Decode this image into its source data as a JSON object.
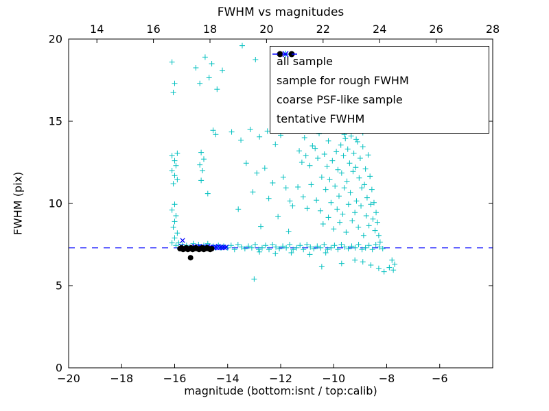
{
  "figure": {
    "background": "#ffffff",
    "frame_color": "#000000"
  },
  "chart_data": {
    "type": "scatter",
    "title": "FWHM vs magnitudes",
    "xlabel": "magnitude (bottom:isnt / top:calib)",
    "ylabel": "FWHM (pix)",
    "xlim": [
      -20,
      -4
    ],
    "top_xlim": [
      13,
      28
    ],
    "ylim": [
      0,
      20
    ],
    "x_ticks_bottom": [
      -20,
      -18,
      -16,
      -14,
      -12,
      -10,
      -8,
      -6
    ],
    "x_ticks_top": [
      14,
      16,
      18,
      20,
      22,
      24,
      26,
      28
    ],
    "y_ticks": [
      0,
      5,
      10,
      15,
      20
    ],
    "grid": false,
    "legend_position": "upper right",
    "tentative_fwhm": 7.3,
    "series": [
      {
        "name": "all sample",
        "marker": "plus",
        "color": "#00bfbf",
        "points": [
          [
            -16.1,
            18.6
          ],
          [
            -16.0,
            17.3
          ],
          [
            -16.05,
            16.75
          ],
          [
            -15.9,
            13.05
          ],
          [
            -16.1,
            12.9
          ],
          [
            -16.0,
            12.6
          ],
          [
            -15.95,
            12.3
          ],
          [
            -16.1,
            12.0
          ],
          [
            -16.0,
            11.7
          ],
          [
            -15.9,
            11.45
          ],
          [
            -16.05,
            11.2
          ],
          [
            -16.0,
            9.95
          ],
          [
            -16.1,
            9.6
          ],
          [
            -15.95,
            9.25
          ],
          [
            -16.0,
            8.9
          ],
          [
            -16.05,
            8.55
          ],
          [
            -15.9,
            8.2
          ],
          [
            -16.0,
            7.9
          ],
          [
            -16.1,
            7.6
          ],
          [
            -15.95,
            7.45
          ],
          [
            -15.2,
            18.25
          ],
          [
            -14.85,
            18.9
          ],
          [
            -14.6,
            18.5
          ],
          [
            -14.7,
            17.65
          ],
          [
            -15.05,
            17.3
          ],
          [
            -14.4,
            16.95
          ],
          [
            -14.2,
            18.1
          ],
          [
            -15.0,
            13.1
          ],
          [
            -14.9,
            12.7
          ],
          [
            -15.05,
            12.35
          ],
          [
            -14.95,
            12.0
          ],
          [
            -15.0,
            11.4
          ],
          [
            -14.55,
            14.45
          ],
          [
            -14.45,
            14.2
          ],
          [
            -14.75,
            10.6
          ],
          [
            -13.45,
            19.6
          ],
          [
            -12.95,
            18.75
          ],
          [
            -13.85,
            14.35
          ],
          [
            -13.5,
            13.85
          ],
          [
            -13.15,
            14.5
          ],
          [
            -12.8,
            14.05
          ],
          [
            -12.5,
            14.4
          ],
          [
            -12.2,
            13.6
          ],
          [
            -12.0,
            14.15
          ],
          [
            -13.3,
            12.45
          ],
          [
            -12.9,
            11.85
          ],
          [
            -12.6,
            12.15
          ],
          [
            -12.3,
            11.25
          ],
          [
            -11.9,
            11.6
          ],
          [
            -13.05,
            10.7
          ],
          [
            -12.45,
            10.3
          ],
          [
            -11.8,
            10.95
          ],
          [
            -11.65,
            10.15
          ],
          [
            -13.6,
            9.65
          ],
          [
            -12.1,
            9.2
          ],
          [
            -11.55,
            9.85
          ],
          [
            -13.0,
            5.4
          ],
          [
            -12.75,
            8.6
          ],
          [
            -11.7,
            8.3
          ],
          [
            -15.85,
            7.6
          ],
          [
            -15.7,
            7.5
          ],
          [
            -15.55,
            7.45
          ],
          [
            -15.3,
            7.55
          ],
          [
            -15.1,
            7.5
          ],
          [
            -14.9,
            7.45
          ],
          [
            -14.75,
            7.55
          ],
          [
            -14.55,
            7.4
          ],
          [
            -14.45,
            7.3
          ],
          [
            -14.35,
            7.45
          ],
          [
            -14.25,
            7.3
          ],
          [
            -14.15,
            7.4
          ],
          [
            -14.0,
            7.3
          ],
          [
            -13.87,
            7.45
          ],
          [
            -13.74,
            7.2
          ],
          [
            -13.61,
            7.5
          ],
          [
            -13.48,
            7.35
          ],
          [
            -13.35,
            7.25
          ],
          [
            -13.22,
            7.4
          ],
          [
            -13.09,
            7.3
          ],
          [
            -12.96,
            7.5
          ],
          [
            -12.83,
            7.2
          ],
          [
            -12.7,
            7.3
          ],
          [
            -12.57,
            7.45
          ],
          [
            -12.44,
            7.2
          ],
          [
            -12.31,
            7.5
          ],
          [
            -12.18,
            7.35
          ],
          [
            -12.05,
            7.25
          ],
          [
            -11.92,
            7.4
          ],
          [
            -11.79,
            7.3
          ],
          [
            -11.66,
            7.5
          ],
          [
            -11.53,
            7.2
          ],
          [
            -11.4,
            7.3
          ],
          [
            -11.27,
            7.45
          ],
          [
            -11.14,
            7.2
          ],
          [
            -11.01,
            7.5
          ],
          [
            -10.88,
            7.35
          ],
          [
            -10.75,
            7.25
          ],
          [
            -10.62,
            7.4
          ],
          [
            -10.49,
            7.3
          ],
          [
            -10.36,
            7.5
          ],
          [
            -10.23,
            7.2
          ],
          [
            -10.1,
            7.3
          ],
          [
            -9.97,
            7.45
          ],
          [
            -9.84,
            7.2
          ],
          [
            -9.71,
            7.5
          ],
          [
            -9.58,
            7.35
          ],
          [
            -9.45,
            7.25
          ],
          [
            -9.32,
            7.4
          ],
          [
            -9.19,
            7.3
          ],
          [
            -9.06,
            7.5
          ],
          [
            -8.93,
            7.2
          ],
          [
            -8.8,
            7.3
          ],
          [
            -8.67,
            7.45
          ],
          [
            -8.54,
            7.2
          ],
          [
            -8.41,
            7.5
          ],
          [
            -8.28,
            7.35
          ],
          [
            -8.15,
            7.25
          ],
          [
            -12.2,
            6.95
          ],
          [
            -11.6,
            7.0
          ],
          [
            -10.9,
            6.9
          ],
          [
            -10.3,
            7.0
          ],
          [
            -12.8,
            7.05
          ],
          [
            -11.45,
            14.6
          ],
          [
            -11.1,
            14.0
          ],
          [
            -10.8,
            13.5
          ],
          [
            -10.55,
            14.25
          ],
          [
            -10.2,
            13.8
          ],
          [
            -9.9,
            14.5
          ],
          [
            -9.6,
            14.2
          ],
          [
            -9.35,
            14.45
          ],
          [
            -9.15,
            13.9
          ],
          [
            -8.9,
            14.3
          ],
          [
            -9.5,
            14.8
          ],
          [
            -10.0,
            14.65
          ],
          [
            -11.3,
            13.2
          ],
          [
            -11.2,
            12.5
          ],
          [
            -11.35,
            11.0
          ],
          [
            -11.15,
            10.4
          ],
          [
            -11.0,
            9.7
          ],
          [
            -11.05,
            12.9
          ],
          [
            -10.9,
            12.3
          ],
          [
            -10.85,
            11.15
          ],
          [
            -10.7,
            13.35
          ],
          [
            -10.65,
            10.2
          ],
          [
            -10.6,
            12.75
          ],
          [
            -10.5,
            9.55
          ],
          [
            -10.45,
            11.6
          ],
          [
            -10.4,
            8.75
          ],
          [
            -10.35,
            13.0
          ],
          [
            -10.3,
            10.85
          ],
          [
            -10.25,
            12.25
          ],
          [
            -10.2,
            9.15
          ],
          [
            -10.15,
            11.45
          ],
          [
            -10.1,
            10.05
          ],
          [
            -10.05,
            12.6
          ],
          [
            -10.0,
            8.45
          ],
          [
            -9.95,
            11.05
          ],
          [
            -9.9,
            13.15
          ],
          [
            -9.87,
            9.65
          ],
          [
            -9.84,
            12.05
          ],
          [
            -9.8,
            10.45
          ],
          [
            -9.77,
            8.85
          ],
          [
            -9.73,
            13.55
          ],
          [
            -9.7,
            11.85
          ],
          [
            -9.66,
            9.35
          ],
          [
            -9.63,
            12.9
          ],
          [
            -9.6,
            10.95
          ],
          [
            -9.56,
            13.95
          ],
          [
            -9.53,
            8.25
          ],
          [
            -9.5,
            11.35
          ],
          [
            -9.47,
            13.3
          ],
          [
            -9.44,
            9.95
          ],
          [
            -9.4,
            12.45
          ],
          [
            -9.37,
            10.65
          ],
          [
            -9.34,
            14.1
          ],
          [
            -9.3,
            8.95
          ],
          [
            -9.27,
            11.95
          ],
          [
            -9.24,
            13.05
          ],
          [
            -9.2,
            9.45
          ],
          [
            -9.17,
            12.2
          ],
          [
            -9.14,
            10.15
          ],
          [
            -9.1,
            13.75
          ],
          [
            -9.07,
            8.55
          ],
          [
            -9.04,
            11.55
          ],
          [
            -9.0,
            12.75
          ],
          [
            -8.97,
            9.85
          ],
          [
            -8.94,
            10.95
          ],
          [
            -8.9,
            13.45
          ],
          [
            -8.87,
            8.05
          ],
          [
            -8.84,
            11.15
          ],
          [
            -8.8,
            12.1
          ],
          [
            -8.77,
            9.25
          ],
          [
            -8.74,
            10.35
          ],
          [
            -8.7,
            12.95
          ],
          [
            -8.67,
            8.65
          ],
          [
            -8.63,
            11.65
          ],
          [
            -8.6,
            9.95
          ],
          [
            -8.56,
            10.85
          ],
          [
            -8.52,
            9.05
          ],
          [
            -8.48,
            10.05
          ],
          [
            -8.44,
            8.35
          ],
          [
            -8.4,
            9.45
          ],
          [
            -8.35,
            8.85
          ],
          [
            -8.3,
            8.05
          ],
          [
            -8.25,
            7.65
          ],
          [
            -10.45,
            6.15
          ],
          [
            -9.7,
            6.35
          ],
          [
            -9.2,
            6.55
          ],
          [
            -8.9,
            6.45
          ],
          [
            -8.6,
            6.25
          ],
          [
            -8.3,
            6.05
          ],
          [
            -8.1,
            5.85
          ],
          [
            -7.9,
            6.1
          ],
          [
            -7.75,
            5.95
          ],
          [
            -7.8,
            6.55
          ],
          [
            -7.7,
            6.3
          ]
        ]
      },
      {
        "name": "sample for rough FWHM",
        "marker": "x",
        "color": "#0000ff",
        "points": [
          [
            -15.75,
            7.4
          ],
          [
            -15.7,
            7.75
          ],
          [
            -15.35,
            7.35
          ],
          [
            -15.3,
            7.3
          ],
          [
            -15.25,
            7.4
          ],
          [
            -15.2,
            7.3
          ],
          [
            -15.15,
            7.35
          ],
          [
            -15.1,
            7.3
          ],
          [
            -15.05,
            7.4
          ],
          [
            -15.0,
            7.3
          ],
          [
            -14.95,
            7.35
          ],
          [
            -14.9,
            7.3
          ],
          [
            -14.85,
            7.35
          ],
          [
            -14.8,
            7.3
          ],
          [
            -14.75,
            7.4
          ],
          [
            -14.7,
            7.3
          ],
          [
            -14.65,
            7.35
          ],
          [
            -14.6,
            7.3
          ],
          [
            -14.55,
            7.35
          ],
          [
            -14.5,
            7.3
          ],
          [
            -14.45,
            7.35
          ],
          [
            -14.4,
            7.3
          ],
          [
            -14.35,
            7.4
          ],
          [
            -14.3,
            7.3
          ],
          [
            -14.25,
            7.35
          ],
          [
            -14.2,
            7.3
          ],
          [
            -14.15,
            7.35
          ],
          [
            -14.1,
            7.3
          ],
          [
            -14.05,
            7.35
          ]
        ]
      },
      {
        "name": "coarse PSF-like sample",
        "marker": "dot",
        "color": "#000000",
        "points": [
          [
            -15.8,
            7.25
          ],
          [
            -15.74,
            7.3
          ],
          [
            -15.68,
            7.2
          ],
          [
            -15.62,
            7.25
          ],
          [
            -15.56,
            7.3
          ],
          [
            -15.5,
            7.2
          ],
          [
            -15.44,
            7.25
          ],
          [
            -15.38,
            7.3
          ],
          [
            -15.32,
            7.2
          ],
          [
            -15.26,
            7.25
          ],
          [
            -15.2,
            7.3
          ],
          [
            -15.14,
            7.25
          ],
          [
            -15.08,
            7.2
          ],
          [
            -15.02,
            7.25
          ],
          [
            -14.96,
            7.3
          ],
          [
            -14.9,
            7.2
          ],
          [
            -14.84,
            7.25
          ],
          [
            -14.78,
            7.3
          ],
          [
            -14.72,
            7.25
          ],
          [
            -14.66,
            7.2
          ],
          [
            -14.6,
            7.25
          ],
          [
            -15.4,
            6.7
          ]
        ]
      },
      {
        "name": "tentative FWHM",
        "marker": "dashed-line",
        "color": "#0000ff",
        "y": 7.3
      }
    ]
  }
}
